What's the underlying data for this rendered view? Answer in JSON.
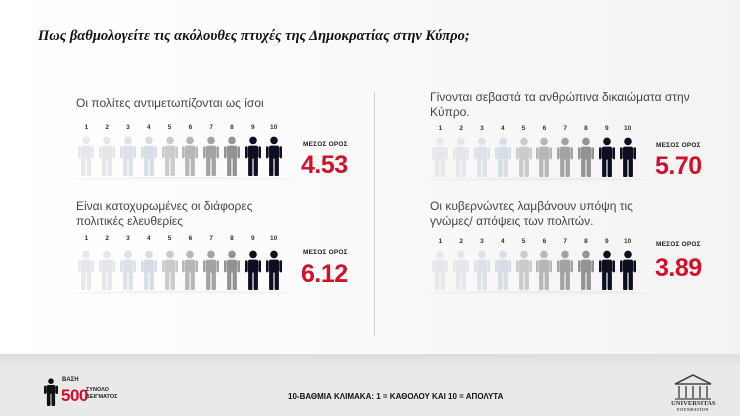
{
  "title": "Πως βαθμολογείτε τις ακόλουθες πτυχές της Δημοκρατίας στην Κύπρο;",
  "scale_numbers": [
    "1",
    "2",
    "3",
    "4",
    "5",
    "6",
    "7",
    "8",
    "9",
    "10"
  ],
  "mean_label": "ΜΕΣΟΣ ΟΡΟΣ",
  "figure_colors": [
    "#e6e8ec",
    "#e4e6ea",
    "#dde1e8",
    "#d7dde6",
    "#cbcbcb",
    "#b7b7b7",
    "#a3a3a3",
    "#939393",
    "#0d0e1f",
    "#0d0e1f"
  ],
  "panels": [
    {
      "question": "Οι πολίτες αντιμετωπίζονται ως ίσοι",
      "mean": "4.53"
    },
    {
      "question": "Γίνονται σεβαστά τα ανθρώπινα δικαιώματα στην Κύπρο.",
      "mean": "5.70"
    },
    {
      "question": "Είναι κατοχυρωμένες οι διάφορες πολιτικές ελευθερίες",
      "mean": "6.12"
    },
    {
      "question": "Οι κυβερνώντες λαμβάνουν υπόψη τις γνώμες/ απόψεις των πολιτών.",
      "mean": "3.89"
    }
  ],
  "footer": {
    "base_label": "ΒΑΣΗ",
    "base_number": "500",
    "base_sub_1": "ΣΥΝΟΛΟ",
    "base_sub_2": "ΔΕΙΓΜΑΤΟΣ",
    "scale_text": "10-ΒΑΘΜΙΑ ΚΛΙΜΑΚΑ: 1 = ΚΑΘΟΛΟΥ ΚΑΙ 10 = ΑΠΟΛΥΤΑ",
    "logo_text": "UNIVERSITAS",
    "logo_sub": "FOUNDATION"
  }
}
